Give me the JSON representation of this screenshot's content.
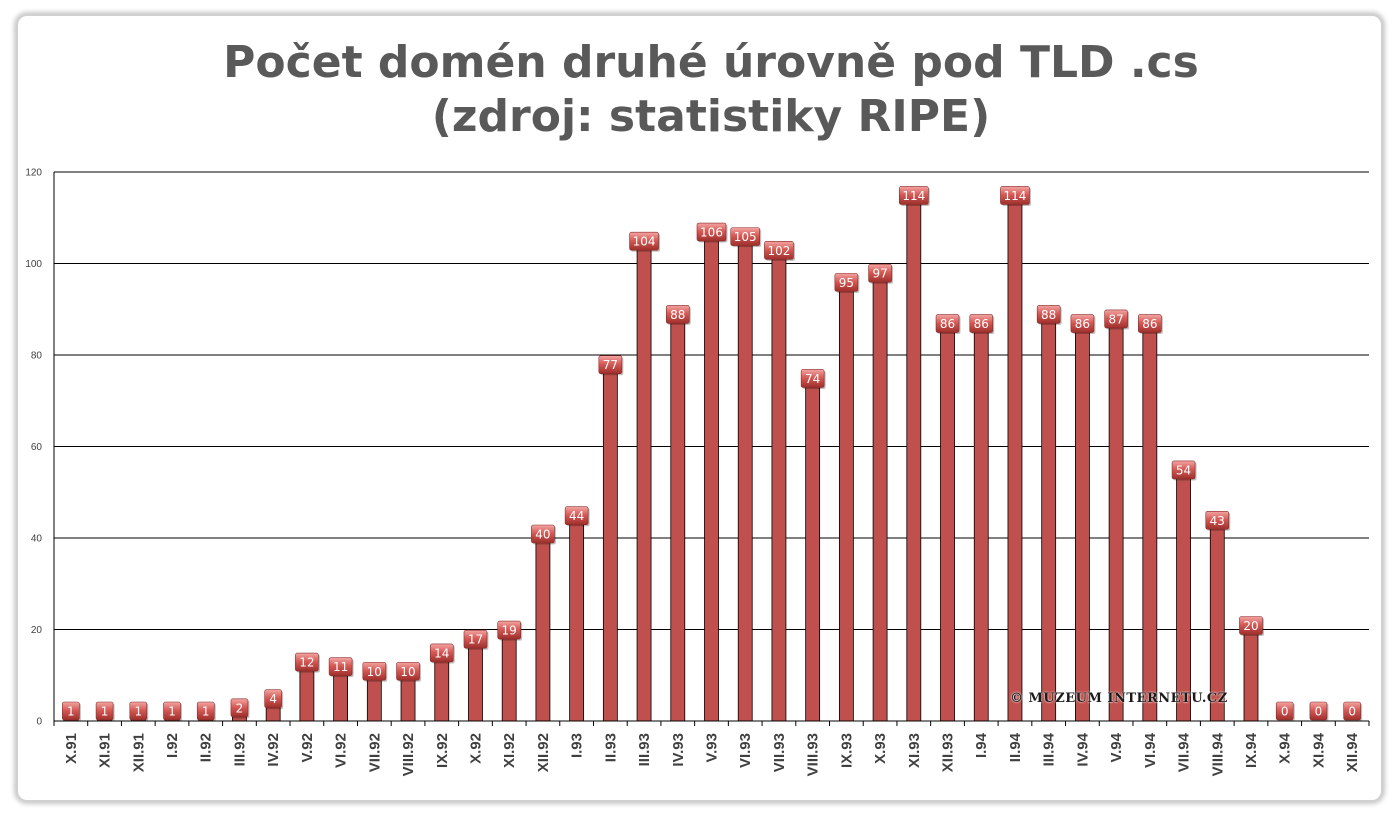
{
  "chart_data": {
    "type": "bar",
    "title_lines": [
      "Počet domén druhé úrovně pod TLD .cs",
      "(zdroj: statistiky RIPE)"
    ],
    "xlabel": "",
    "ylabel": "",
    "ylim": [
      0,
      120
    ],
    "yticks": [
      "0",
      "20",
      "40",
      "60",
      "80",
      "100",
      "120"
    ],
    "categories": [
      "X.91",
      "XI.91",
      "XII.91",
      "I.92",
      "II.92",
      "III.92",
      "IV.92",
      "V.92",
      "VI.92",
      "VII.92",
      "VIII.92",
      "IX.92",
      "X.92",
      "XI.92",
      "XII.92",
      "I.93",
      "II.93",
      "III.93",
      "IV.93",
      "V.93",
      "VI.93",
      "VII.93",
      "VIII.93",
      "IX.93",
      "X.93",
      "XI.93",
      "XII.93",
      "I.94",
      "II.94",
      "III.94",
      "IV.94",
      "V.94",
      "VI.94",
      "VII.94",
      "VIII.94",
      "IX.94",
      "X.94",
      "XI.94",
      "XII.94"
    ],
    "values": [
      1,
      1,
      1,
      1,
      1,
      2,
      4,
      12,
      11,
      10,
      10,
      14,
      17,
      19,
      40,
      44,
      77,
      104,
      88,
      106,
      105,
      102,
      74,
      95,
      97,
      114,
      86,
      86,
      114,
      88,
      86,
      87,
      86,
      54,
      43,
      20,
      0,
      0,
      0
    ],
    "data_labels": true,
    "grid": true,
    "legend": false,
    "colors": {
      "bar": "#c0504d",
      "bar_edge": "#000000",
      "label_bg": "#c0504d",
      "title": "#595959"
    }
  },
  "watermark": "©  MUZEUM INTERNETU.CZ"
}
